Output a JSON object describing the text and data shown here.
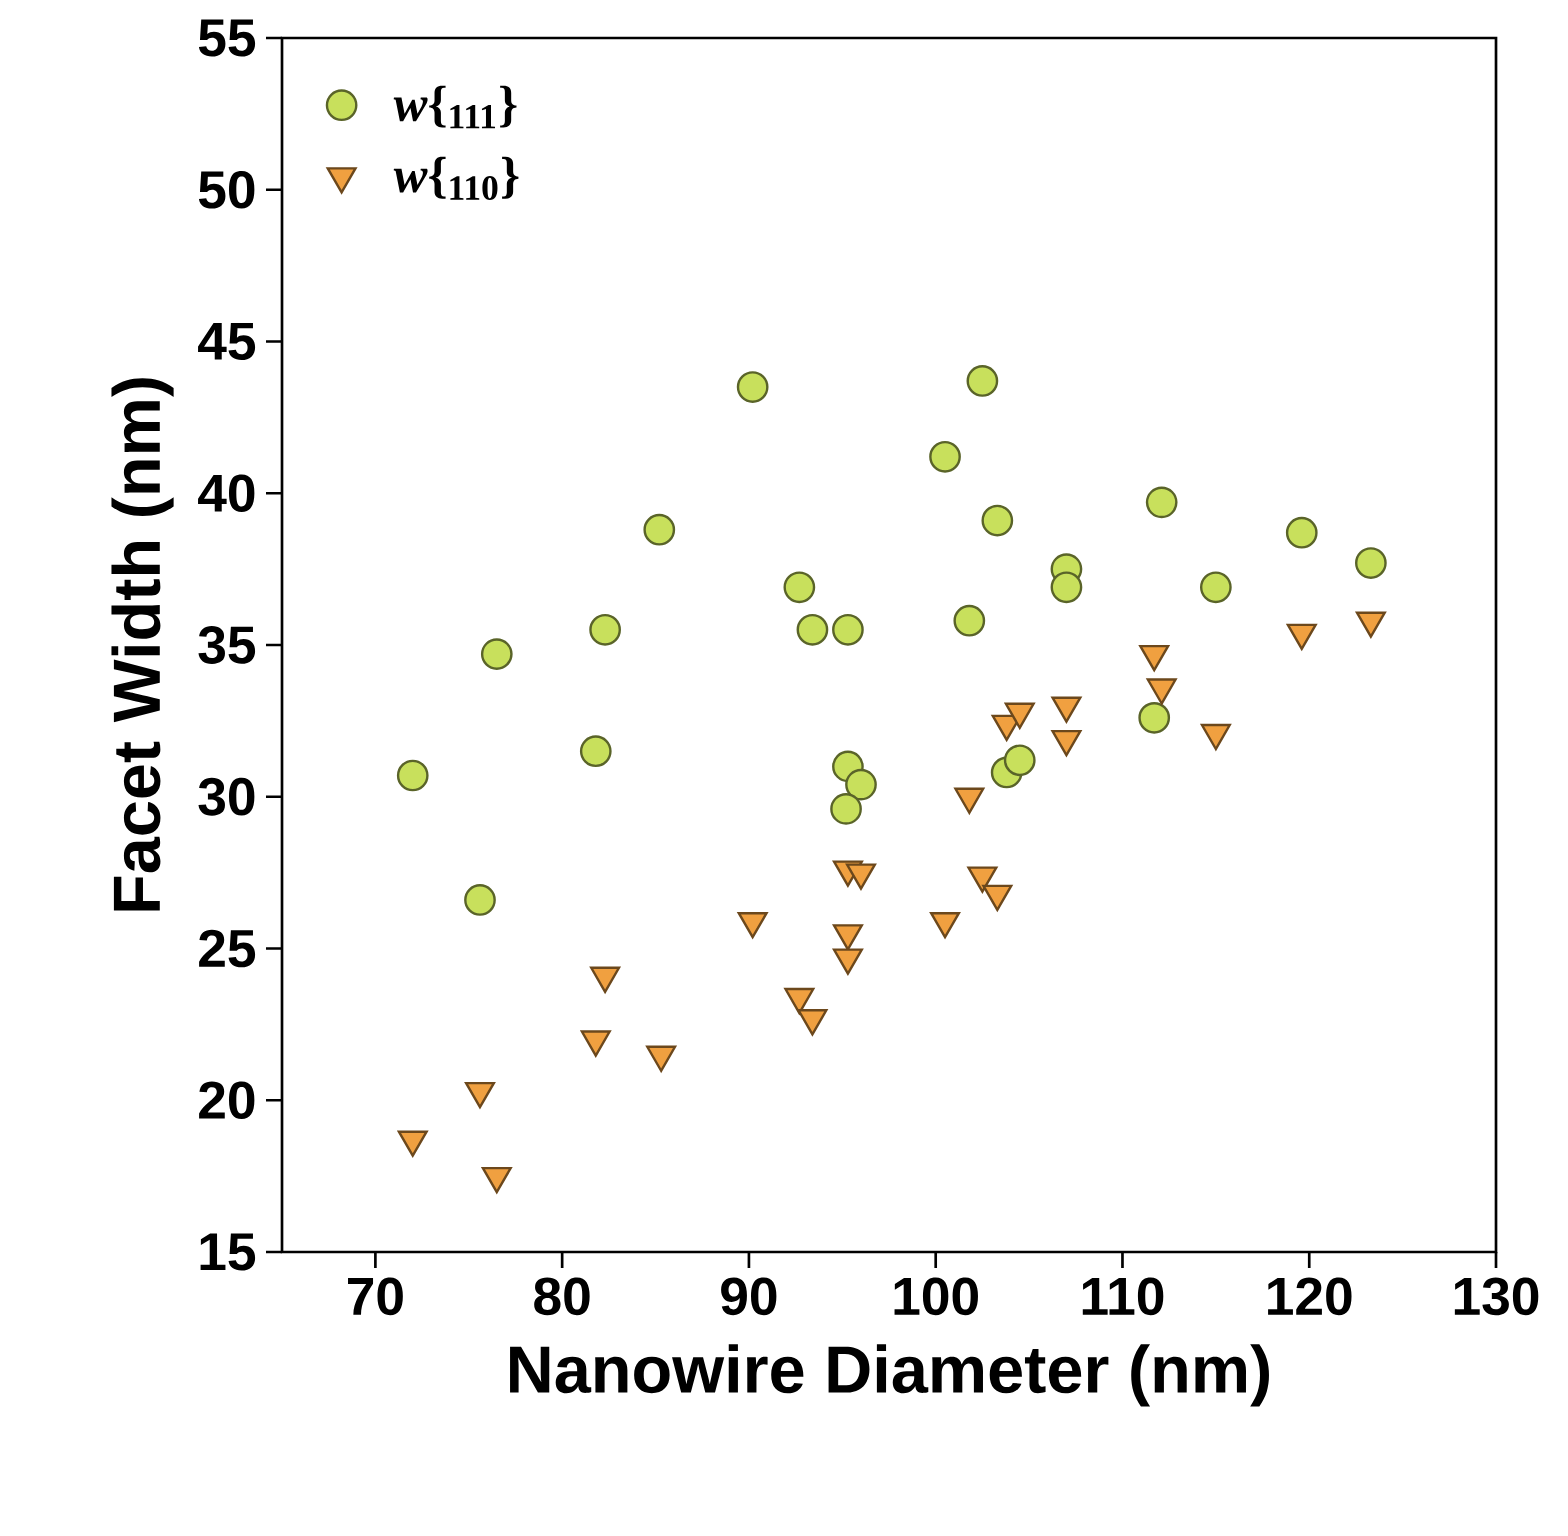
{
  "chart_data": {
    "type": "scatter",
    "xlabel": "Nanowire Diameter (nm)",
    "ylabel": "Facet Width (nm)",
    "xlim": [
      65,
      130
    ],
    "xticks": [
      70,
      80,
      90,
      100,
      110,
      120,
      130
    ],
    "ylim": [
      15,
      55
    ],
    "yticks": [
      15,
      20,
      25,
      30,
      35,
      40,
      45,
      50,
      55
    ],
    "grid": false,
    "legend": "top left",
    "series": [
      {
        "name": "*w*{$_{111}$}",
        "color": "#c8e05c",
        "marker": "circle",
        "x": [
          72.0,
          75.6,
          76.5,
          81.8,
          82.3,
          85.2,
          90.2,
          92.7,
          93.4,
          95.3,
          95.3,
          96.0,
          95.2,
          100.5,
          101.8,
          102.5,
          103.3,
          103.8,
          104.5,
          107.0,
          107.0,
          111.7,
          112.1,
          115.0,
          119.6,
          123.3
        ],
        "values": [
          30.7,
          26.6,
          34.7,
          31.5,
          35.5,
          38.8,
          43.5,
          36.9,
          35.5,
          35.5,
          31.0,
          30.4,
          29.6,
          41.2,
          35.8,
          43.7,
          39.1,
          30.8,
          31.2,
          37.5,
          36.9,
          32.6,
          39.7,
          36.9,
          38.7,
          37.7
        ]
      },
      {
        "name": "*w*{$_{110}$}",
        "color": "#f0a040",
        "marker": "triangle",
        "x": [
          72.0,
          75.6,
          76.5,
          81.8,
          82.3,
          85.3,
          90.2,
          92.7,
          93.4,
          95.3,
          96.0,
          95.3,
          95.3,
          100.5,
          101.8,
          102.5,
          103.3,
          103.8,
          104.5,
          107.0,
          107.0,
          111.7,
          112.1,
          115.0,
          119.6,
          123.3
        ],
        "values": [
          18.7,
          20.3,
          17.5,
          22.0,
          24.1,
          21.5,
          25.9,
          23.4,
          22.7,
          27.6,
          27.5,
          25.5,
          24.7,
          25.9,
          30.0,
          27.4,
          26.8,
          32.4,
          32.8,
          33.0,
          31.9,
          34.7,
          33.6,
          32.1,
          35.4,
          35.8
        ]
      }
    ]
  }
}
